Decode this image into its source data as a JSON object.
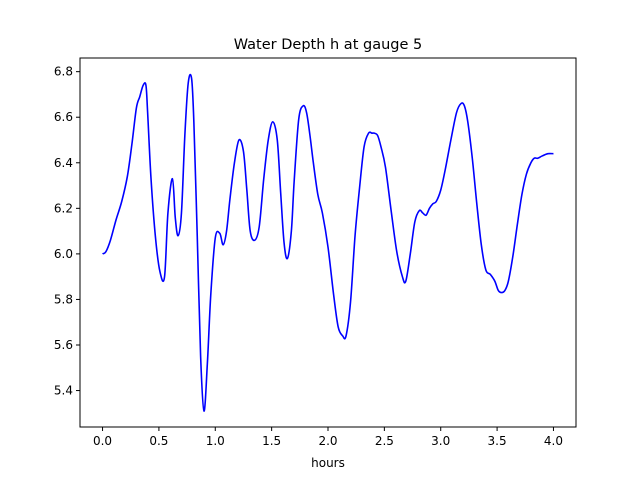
{
  "chart_data": {
    "type": "line",
    "title": "Water Depth h at gauge 5",
    "xlabel": "hours",
    "ylabel": "",
    "xlim": [
      -0.2,
      4.2
    ],
    "ylim": [
      5.24,
      6.86
    ],
    "xticks": [
      0.0,
      0.5,
      1.0,
      1.5,
      2.0,
      2.5,
      3.0,
      3.5,
      4.0
    ],
    "xtick_labels": [
      "0.0",
      "0.5",
      "1.0",
      "1.5",
      "2.0",
      "2.5",
      "3.0",
      "3.5",
      "4.0"
    ],
    "yticks": [
      5.4,
      5.6,
      5.8,
      6.0,
      6.2,
      6.4,
      6.6,
      6.8
    ],
    "ytick_labels": [
      "5.4",
      "5.6",
      "5.8",
      "6.0",
      "6.2",
      "6.4",
      "6.6",
      "6.8"
    ],
    "grid": false,
    "series": [
      {
        "color": "#0000ff",
        "x": [
          0.0,
          0.03,
          0.07,
          0.12,
          0.17,
          0.22,
          0.26,
          0.3,
          0.33,
          0.36,
          0.385,
          0.4,
          0.43,
          0.47,
          0.51,
          0.55,
          0.58,
          0.62,
          0.645,
          0.67,
          0.7,
          0.73,
          0.76,
          0.79,
          0.81,
          0.84,
          0.87,
          0.9,
          0.93,
          0.96,
          1.0,
          1.04,
          1.07,
          1.1,
          1.13,
          1.17,
          1.21,
          1.25,
          1.28,
          1.31,
          1.35,
          1.39,
          1.43,
          1.47,
          1.51,
          1.55,
          1.58,
          1.61,
          1.64,
          1.675,
          1.7,
          1.74,
          1.78,
          1.81,
          1.84,
          1.87,
          1.91,
          1.95,
          2.0,
          2.05,
          2.09,
          2.13,
          2.16,
          2.2,
          2.24,
          2.28,
          2.32,
          2.36,
          2.39,
          2.41,
          2.44,
          2.47,
          2.51,
          2.56,
          2.61,
          2.66,
          2.69,
          2.73,
          2.77,
          2.81,
          2.84,
          2.87,
          2.9,
          2.93,
          2.96,
          3.0,
          3.04,
          3.09,
          3.14,
          3.18,
          3.21,
          3.24,
          3.28,
          3.32,
          3.36,
          3.4,
          3.44,
          3.48,
          3.51,
          3.54,
          3.57,
          3.6,
          3.64,
          3.68,
          3.72,
          3.76,
          3.8,
          3.83,
          3.86,
          3.9,
          3.95,
          4.0
        ],
        "y": [
          6.0,
          6.01,
          6.06,
          6.15,
          6.23,
          6.34,
          6.48,
          6.64,
          6.69,
          6.74,
          6.74,
          6.62,
          6.33,
          6.07,
          5.92,
          5.9,
          6.18,
          6.33,
          6.16,
          6.08,
          6.18,
          6.52,
          6.75,
          6.77,
          6.58,
          6.08,
          5.55,
          5.31,
          5.52,
          5.82,
          6.07,
          6.09,
          6.04,
          6.1,
          6.24,
          6.4,
          6.5,
          6.45,
          6.28,
          6.1,
          6.06,
          6.12,
          6.33,
          6.5,
          6.58,
          6.5,
          6.27,
          6.05,
          5.98,
          6.1,
          6.32,
          6.59,
          6.65,
          6.62,
          6.52,
          6.4,
          6.26,
          6.18,
          6.03,
          5.82,
          5.68,
          5.64,
          5.64,
          5.79,
          6.08,
          6.29,
          6.47,
          6.53,
          6.53,
          6.53,
          6.52,
          6.47,
          6.38,
          6.19,
          6.01,
          5.9,
          5.88,
          6.0,
          6.14,
          6.19,
          6.18,
          6.17,
          6.2,
          6.22,
          6.23,
          6.28,
          6.37,
          6.5,
          6.62,
          6.66,
          6.65,
          6.58,
          6.42,
          6.22,
          6.04,
          5.93,
          5.91,
          5.88,
          5.84,
          5.83,
          5.84,
          5.88,
          5.99,
          6.13,
          6.26,
          6.35,
          6.4,
          6.42,
          6.42,
          6.43,
          6.44,
          6.44
        ]
      }
    ]
  }
}
